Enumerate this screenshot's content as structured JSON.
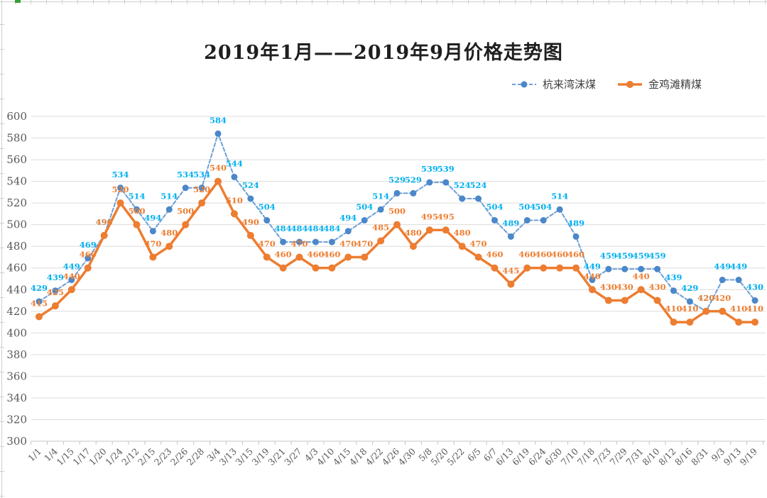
{
  "chart_data": {
    "type": "line",
    "title": "2019年1月——2019年9月价格走势图",
    "categories": [
      "1/1",
      "1/4",
      "1/15",
      "1/17",
      "1/20",
      "1/24",
      "2/12",
      "2/15",
      "2/23",
      "2/26",
      "2/28",
      "3/4",
      "3/13",
      "3/15",
      "3/19",
      "3/21",
      "3/27",
      "4/3",
      "4/10",
      "4/15",
      "4/18",
      "4/22",
      "4/26",
      "4/30",
      "5/8",
      "5/20",
      "5/22",
      "6/5",
      "6/7",
      "6/13",
      "6/19",
      "6/24",
      "6/30",
      "7/10",
      "7/18",
      "7/23",
      "7/29",
      "7/31",
      "8/10",
      "8/12",
      "8/16",
      "8/31",
      "9/3",
      "9/13",
      "9/19"
    ],
    "series": [
      {
        "name": "杭来湾沫煤",
        "style": "dashed",
        "line_color": "#6C9FD8",
        "marker_color": "#4B87C9",
        "label_color": "#00B0F0",
        "values": [
          429,
          439,
          449,
          469,
          490,
          534,
          514,
          494,
          514,
          534,
          534,
          584,
          544,
          524,
          504,
          484,
          484,
          484,
          484,
          494,
          504,
          514,
          529,
          529,
          539,
          539,
          524,
          524,
          504,
          489,
          504,
          504,
          514,
          489,
          449,
          459,
          459,
          459,
          459,
          439,
          429,
          420,
          449,
          449,
          430
        ]
      },
      {
        "name": "金鸡滩精煤",
        "style": "solid",
        "line_color": "#ED7D31",
        "marker_color": "#ED7D31",
        "label_color": "#ED7D31",
        "values": [
          415,
          425,
          440,
          460,
          490,
          520,
          500,
          470,
          480,
          500,
          520,
          540,
          510,
          490,
          470,
          460,
          470,
          460,
          460,
          470,
          470,
          485,
          500,
          480,
          495,
          495,
          480,
          470,
          460,
          445,
          460,
          460,
          460,
          460,
          440,
          430,
          430,
          440,
          430,
          410,
          410,
          420,
          420,
          410,
          410
        ]
      }
    ],
    "ylim": [
      300,
      600
    ],
    "ytick_step": 20,
    "ytick_labels": [
      "600",
      "580",
      "560",
      "540",
      "520",
      "500",
      "480",
      "460",
      "440",
      "420",
      "400",
      "380",
      "360",
      "340",
      "320",
      "300"
    ],
    "grid": true,
    "legend_position": "top-right",
    "colors": {
      "gridline": "#DCDCDC",
      "axis_line": "#C5C5C5",
      "tick_text": "#595959"
    }
  }
}
